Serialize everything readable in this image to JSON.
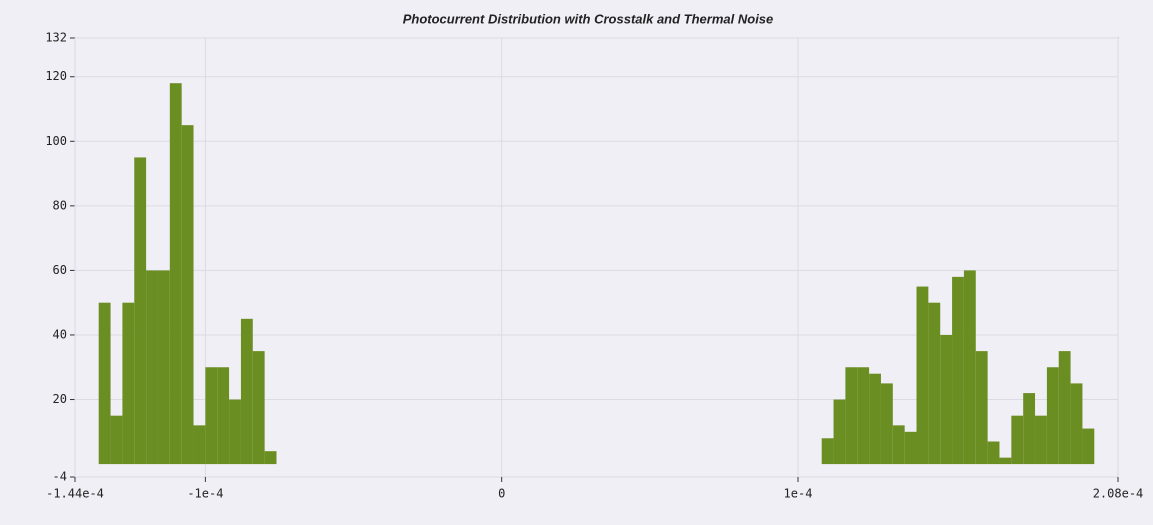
{
  "chart_data": {
    "type": "histogram",
    "title": "Photocurrent Distribution with Crosstalk and Thermal Noise",
    "bins": [
      -0.000136,
      -0.000132,
      -0.000128,
      -0.000124,
      -0.00012,
      -0.000116,
      -0.000112,
      -0.000108,
      -0.000104,
      -0.0001,
      -9.6e-05,
      -9.2e-05,
      -8.8e-05,
      -8.4e-05,
      -8e-05,
      -7.6e-05,
      -7.2e-05,
      -6.8e-05,
      -6.4e-05,
      -6e-05,
      -5.6e-05,
      -5.2e-05,
      -4.8e-05,
      -4.4e-05,
      -4e-05,
      -3.6e-05,
      -3.2e-05,
      -2.8e-05,
      -2.4e-05,
      -2e-05,
      -1.6e-05,
      -1.2e-05,
      -8e-06,
      -4e-06,
      0,
      4e-06,
      8e-06,
      1.2e-05,
      1.6e-05,
      2e-05,
      2.4e-05,
      2.8e-05,
      3.2e-05,
      3.6e-05,
      4e-05,
      4.4e-05,
      4.8e-05,
      5.2e-05,
      5.6e-05,
      6e-05,
      6.4e-05,
      6.8e-05,
      7.2e-05,
      7.6e-05,
      8e-05,
      8.4e-05,
      8.8e-05,
      9.2e-05,
      9.6e-05,
      0.0001,
      0.000104,
      0.000108,
      0.000112,
      0.000116,
      0.00012,
      0.000124,
      0.000128,
      0.000132,
      0.000136,
      0.00014,
      0.000144,
      0.000148,
      0.000152,
      0.000156,
      0.00016,
      0.000164,
      0.000168,
      0.000172,
      0.000176,
      0.00018,
      0.000184,
      0.000188,
      0.000192,
      0.000196,
      0.0002
    ],
    "values": [
      50,
      15,
      50,
      95,
      60,
      60,
      118,
      105,
      12,
      30,
      30,
      20,
      45,
      35,
      4,
      0,
      0,
      0,
      0,
      0,
      0,
      0,
      0,
      0,
      0,
      0,
      0,
      0,
      0,
      0,
      0,
      0,
      0,
      0,
      0,
      0,
      0,
      0,
      0,
      0,
      0,
      0,
      0,
      0,
      0,
      0,
      0,
      0,
      0,
      0,
      0,
      0,
      0,
      0,
      0,
      0,
      0,
      0,
      0,
      0,
      0,
      8,
      20,
      30,
      30,
      28,
      25,
      12,
      10,
      55,
      50,
      40,
      58,
      60,
      35,
      7,
      2,
      15,
      22,
      15,
      30,
      35,
      25,
      11
    ],
    "color": "#6b8e23",
    "xlim": [
      -0.000144,
      0.000208
    ],
    "xticks": [
      {
        "value": -0.000144,
        "label": "-1.44e-4"
      },
      {
        "value": -0.0001,
        "label": "-1e-4"
      },
      0,
      {
        "value": 0.0001,
        "label": "1e-4"
      },
      {
        "value": 0.000208,
        "label": "2.08e-4"
      }
    ],
    "ylim": [
      -4,
      132
    ],
    "yticks": [
      -4,
      20,
      40,
      60,
      80,
      100,
      120,
      132
    ],
    "grid": true
  }
}
